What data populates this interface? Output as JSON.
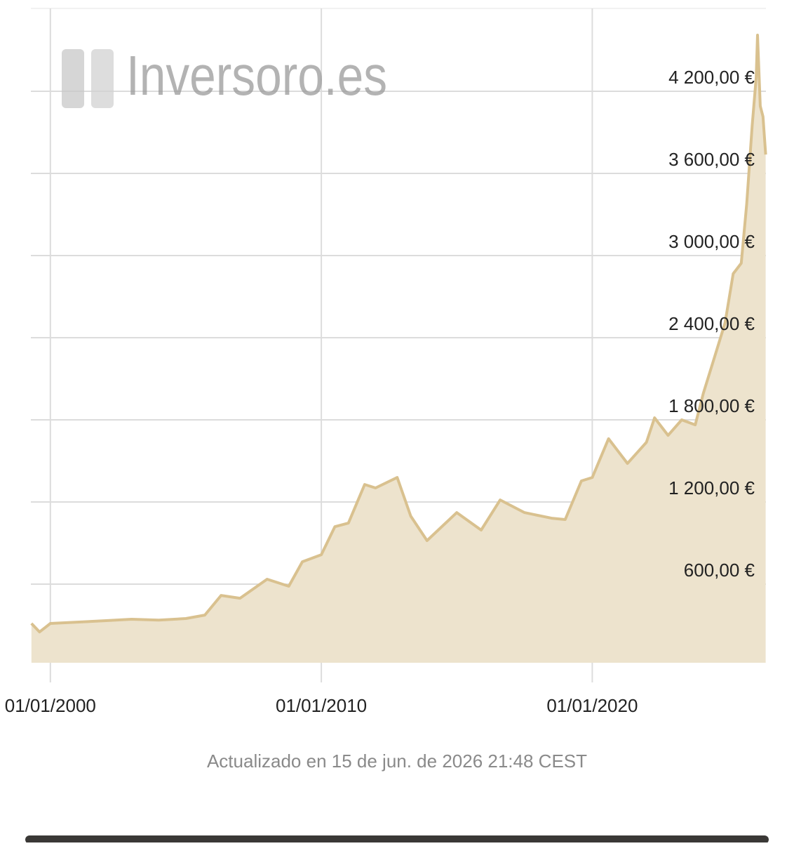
{
  "chart_data": {
    "type": "area",
    "watermark": "Inversoro.es",
    "footer": "Actualizado en 15 de jun. de 2026 21:48 CEST",
    "x": [
      1999.3,
      1999.6,
      2000.0,
      2001.0,
      2002.0,
      2003.0,
      2004.0,
      2005.0,
      2005.7,
      2006.3,
      2007.0,
      2008.0,
      2008.8,
      2009.3,
      2010.0,
      2010.5,
      2011.0,
      2011.6,
      2012.0,
      2012.8,
      2013.3,
      2013.9,
      2015.0,
      2015.9,
      2016.6,
      2017.5,
      2018.5,
      2019.0,
      2019.6,
      2020.0,
      2020.6,
      2021.3,
      2022.0,
      2022.3,
      2022.8,
      2023.3,
      2023.8,
      2024.1,
      2024.5,
      2024.9,
      2025.2,
      2025.5,
      2025.7,
      2025.9,
      2026.05,
      2026.1,
      2026.2,
      2026.3,
      2026.4
    ],
    "values": [
      313,
      251,
      313,
      323,
      333,
      344,
      338,
      349,
      374,
      518,
      497,
      636,
      585,
      764,
      815,
      1020,
      1046,
      1328,
      1303,
      1379,
      1097,
      918,
      1123,
      995,
      1215,
      1123,
      1082,
      1072,
      1354,
      1379,
      1662,
      1482,
      1636,
      1815,
      1687,
      1800,
      1764,
      1995,
      2250,
      2508,
      2867,
      2944,
      3379,
      3944,
      4303,
      4610,
      4092,
      4015,
      3738
    ],
    "color": "#d9c18f",
    "fill": "#ede3cd",
    "xlim": [
      1999.28,
      2026.41
    ],
    "xticks": [
      {
        "value": 2000,
        "label": "01/01/2000"
      },
      {
        "value": 2010,
        "label": "01/01/2010"
      },
      {
        "value": 2020,
        "label": "01/01/2020"
      }
    ],
    "ylim": [
      26,
      4805
    ],
    "yticks": [
      {
        "value": 600,
        "label": "600,00 €"
      },
      {
        "value": 1200,
        "label": "1 200,00 €"
      },
      {
        "value": 1800,
        "label": "1 800,00 €"
      },
      {
        "value": 2400,
        "label": "2 400,00 €"
      },
      {
        "value": 3000,
        "label": "3 000,00 €"
      },
      {
        "value": 3600,
        "label": "3 600,00 €"
      },
      {
        "value": 4200,
        "label": "4 200,00 €"
      }
    ],
    "grid": true
  }
}
